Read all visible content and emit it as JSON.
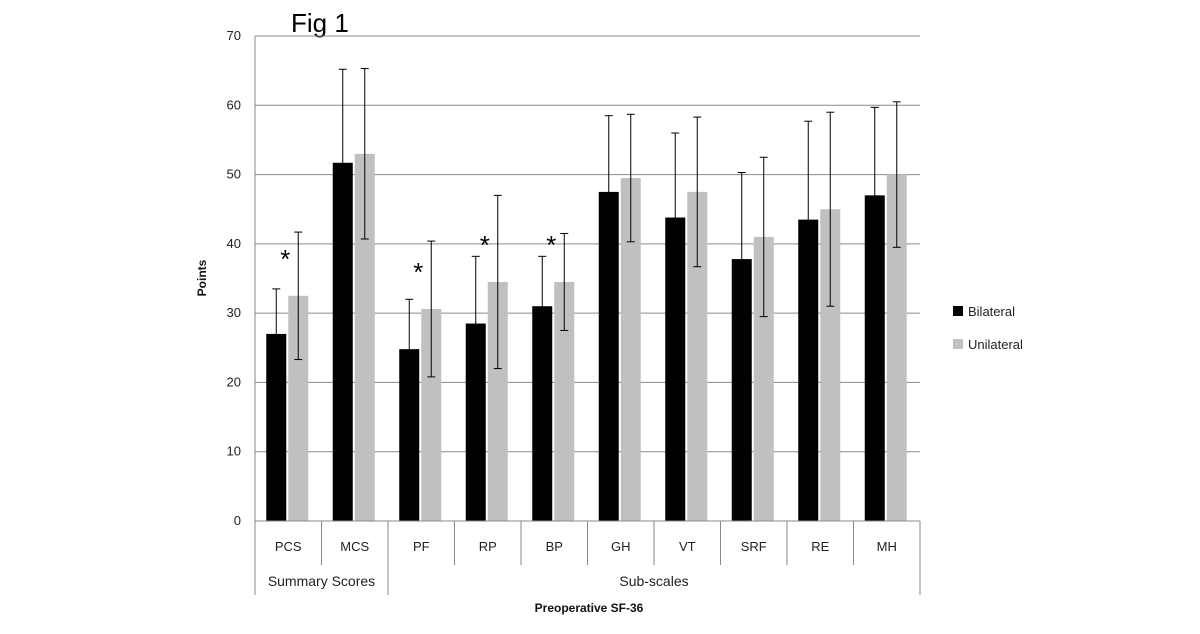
{
  "chart_data": {
    "type": "bar",
    "title": "Fig 1",
    "xlabel": "Preoperative SF-36",
    "ylabel": "Points",
    "ylim": [
      0,
      70
    ],
    "yticks": [
      0,
      10,
      20,
      30,
      40,
      50,
      60,
      70
    ],
    "grid": true,
    "legend_position": "right",
    "categories": [
      "PCS",
      "MCS",
      "PF",
      "RP",
      "BP",
      "GH",
      "VT",
      "SRF",
      "RE",
      "MH"
    ],
    "groups": [
      {
        "label": "Summary Scores",
        "categories": [
          "PCS",
          "MCS"
        ]
      },
      {
        "label": "Sub-scales",
        "categories": [
          "PF",
          "RP",
          "BP",
          "GH",
          "VT",
          "SRF",
          "RE",
          "MH"
        ]
      }
    ],
    "series": [
      {
        "name": "Bilateral",
        "color": "#000000",
        "values": [
          27,
          51.7,
          24.8,
          28.5,
          31,
          47.5,
          43.8,
          37.8,
          43.5,
          47
        ],
        "error": [
          6.5,
          13.5,
          7.2,
          9.7,
          7.2,
          11,
          12.2,
          12.5,
          14.2,
          12.7
        ]
      },
      {
        "name": "Unilateral",
        "color": "#c0c0c0",
        "values": [
          32.5,
          53,
          30.6,
          34.5,
          34.5,
          49.5,
          47.5,
          41,
          45,
          50
        ],
        "error": [
          9.2,
          12.3,
          9.8,
          12.5,
          7,
          9.2,
          10.8,
          11.5,
          14,
          10.5
        ]
      }
    ],
    "significance": [
      {
        "category": "PCS",
        "mark": "*"
      },
      {
        "category": "PF",
        "mark": "*"
      },
      {
        "category": "RP",
        "mark": "*"
      },
      {
        "category": "BP",
        "mark": "*"
      }
    ]
  }
}
